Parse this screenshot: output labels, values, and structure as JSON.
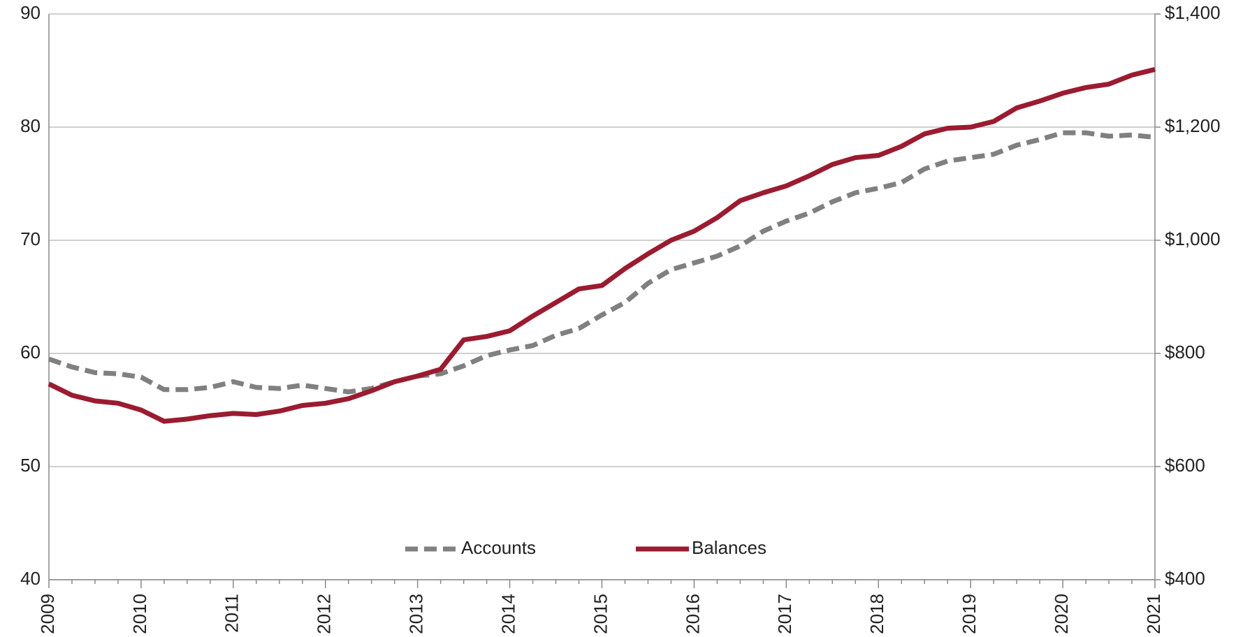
{
  "chart_data": {
    "type": "line",
    "categories": [
      "2009",
      null,
      null,
      null,
      "2010",
      null,
      null,
      null,
      "2011",
      null,
      null,
      null,
      "2012",
      null,
      null,
      null,
      "2013",
      null,
      null,
      null,
      "2014",
      null,
      null,
      null,
      "2015",
      null,
      null,
      null,
      "2016",
      null,
      null,
      null,
      "2017",
      null,
      null,
      null,
      "2018",
      null,
      null,
      null,
      "2019",
      null,
      null,
      null,
      "2020",
      null,
      null,
      null,
      "2021"
    ],
    "series": [
      {
        "name": "Accounts",
        "color": "#808080",
        "dash": true,
        "axis": "y",
        "values": [
          59.5,
          58.8,
          58.3,
          58.2,
          57.9,
          56.8,
          56.8,
          57.0,
          57.5,
          57.0,
          56.9,
          57.2,
          56.9,
          56.6,
          56.9,
          57.5,
          58.0,
          58.2,
          58.9,
          59.8,
          60.3,
          60.7,
          61.6,
          62.2,
          63.4,
          64.5,
          66.2,
          67.4,
          68.0,
          68.6,
          69.5,
          70.8,
          71.7,
          72.4,
          73.4,
          74.2,
          74.6,
          75.1,
          76.3,
          77.0,
          77.3,
          77.6,
          78.4,
          78.9,
          79.5,
          79.5,
          79.2,
          79.3,
          79.1
        ]
      },
      {
        "name": "Balances",
        "color": "#9b1b30",
        "dash": false,
        "axis": "y2",
        "values": [
          746,
          726,
          716,
          712,
          700,
          680,
          684,
          690,
          694,
          692,
          698,
          708,
          712,
          720,
          734,
          750,
          760,
          772,
          824,
          830,
          840,
          866,
          890,
          914,
          920,
          950,
          976,
          1000,
          1016,
          1040,
          1070,
          1084,
          1096,
          1114,
          1134,
          1146,
          1150,
          1166,
          1188,
          1198,
          1200,
          1210,
          1234,
          1246,
          1260,
          1270,
          1276,
          1292,
          1302
        ]
      }
    ],
    "ylim": [
      40,
      90
    ],
    "yticks": [
      40,
      50,
      60,
      70,
      80,
      90
    ],
    "y2lim": [
      400,
      1400
    ],
    "y2ticks": [
      {
        "value": 400,
        "label": "$400"
      },
      {
        "value": 600,
        "label": "$600"
      },
      {
        "value": 800,
        "label": "$800"
      },
      {
        "value": 1000,
        "label": "$1,000"
      },
      {
        "value": 1200,
        "label": "$1,200"
      },
      {
        "value": 1400,
        "label": "$1,400"
      }
    ],
    "grid": true,
    "legend": "bottom"
  }
}
